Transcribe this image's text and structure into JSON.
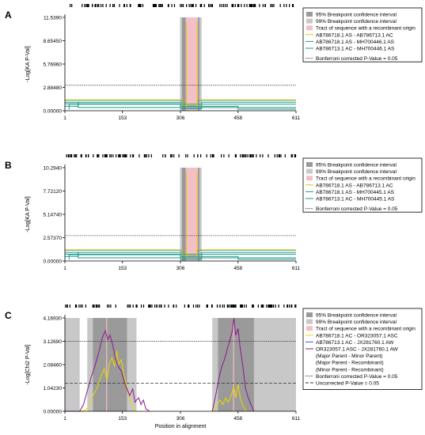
{
  "chart_data": [
    {
      "panel": "A",
      "type": "line",
      "ylabel": "-Log[KA P-Val]",
      "xlabel": "",
      "x_ticks": [
        "1",
        "153",
        "306",
        "458",
        "611"
      ],
      "y_ticks": [
        "0.00000",
        "2.88480",
        "5.76960",
        "8.65450",
        "11.5390"
      ],
      "xlim": [
        1,
        611
      ],
      "ylim": [
        0,
        11.539
      ],
      "breakpoint_99": [
        [
          305,
          362
        ]
      ],
      "breakpoint_95": [
        [
          310,
          356
        ]
      ],
      "recombinant_tract": [
        [
          320,
          352
        ]
      ],
      "threshold_lines": [
        {
          "value": 3.15,
          "style": "dotted",
          "label": "Bonferroni corrected P-Value = 0.05"
        }
      ],
      "legend": [
        "95% Breakpoint confidence interval",
        "99% Breakpoint confidence interval",
        "Tract of sequence with a recombinant origin",
        "AB786718.1 AS - AB786713.1 AC",
        "AB786718.1 AS - MH700446.1 AS",
        "AB786713.1 AC - MH700446.1 AS",
        "Bonferroni corrected P-Value = 0.05"
      ],
      "series_colors": [
        "#e8c800",
        "#1f9a8a",
        "#1f9a8a"
      ],
      "steps": [
        [
          [
            1,
            1.3
          ],
          [
            311,
            1.3
          ],
          [
            311,
            0.6
          ],
          [
            350,
            0.6
          ],
          [
            350,
            1.3
          ],
          [
            458,
            1.3
          ],
          [
            611,
            1.3
          ]
        ],
        [
          [
            1,
            1.05
          ],
          [
            36,
            1.05
          ],
          [
            36,
            0.4
          ],
          [
            306,
            0.4
          ],
          [
            306,
            0.8
          ],
          [
            458,
            0.8
          ],
          [
            611,
            0.8
          ]
        ],
        [
          [
            1,
            0.85
          ],
          [
            306,
            0.85
          ],
          [
            306,
            0.25
          ],
          [
            362,
            0.25
          ],
          [
            362,
            1.05
          ],
          [
            611,
            1.05
          ]
        ],
        [
          [
            1,
            0.55
          ],
          [
            36,
            0.55
          ],
          [
            36,
            1.05
          ],
          [
            311,
            1.05
          ],
          [
            311,
            0.4
          ],
          [
            611,
            0.4
          ]
        ],
        [
          [
            12,
            0.15
          ],
          [
            12,
            0.8
          ],
          [
            306,
            0.8
          ],
          [
            306,
            0.55
          ],
          [
            458,
            0.55
          ],
          [
            458,
            0.2
          ],
          [
            611,
            0.2
          ]
        ]
      ]
    },
    {
      "panel": "B",
      "type": "line",
      "ylabel": "-Log[KA P-Val]",
      "xlabel": "",
      "x_ticks": [
        "1",
        "153",
        "306",
        "458",
        "611"
      ],
      "y_ticks": [
        "0.00000",
        "2.57370",
        "5.14740",
        "7.72120",
        "10.2940"
      ],
      "xlim": [
        1,
        611
      ],
      "ylim": [
        0,
        10.294
      ],
      "breakpoint_99": [
        [
          305,
          362
        ]
      ],
      "breakpoint_95": [
        [
          310,
          356
        ]
      ],
      "recombinant_tract": [
        [
          320,
          352
        ]
      ],
      "threshold_lines": [
        {
          "value": 2.8,
          "style": "dotted",
          "label": "Bonferroni corrected P-Value = 0.05"
        }
      ],
      "legend": [
        "95% Breakpoint confidence interval",
        "99% Breakpoint confidence interval",
        "Tract of sequence with a recombinant origin",
        "AB786718.1 AS - AB786713.1 AC",
        "AB786718.1 AS - MH700445.1 AS",
        "AB786713.1 AC - MH700445.1 AS",
        "Bonferroni corrected P-Value = 0.05"
      ],
      "series_colors": [
        "#e8c800",
        "#1f9a8a",
        "#1f9a8a"
      ],
      "steps": [
        [
          [
            1,
            1.2
          ],
          [
            311,
            1.2
          ],
          [
            311,
            0.55
          ],
          [
            350,
            0.55
          ],
          [
            350,
            1.2
          ],
          [
            611,
            1.2
          ]
        ],
        [
          [
            1,
            0.95
          ],
          [
            36,
            0.95
          ],
          [
            36,
            0.35
          ],
          [
            306,
            0.35
          ],
          [
            306,
            0.75
          ],
          [
            611,
            0.75
          ]
        ],
        [
          [
            1,
            0.75
          ],
          [
            306,
            0.75
          ],
          [
            306,
            0.2
          ],
          [
            362,
            0.2
          ],
          [
            362,
            0.95
          ],
          [
            611,
            0.95
          ]
        ],
        [
          [
            1,
            0.5
          ],
          [
            36,
            0.5
          ],
          [
            36,
            0.95
          ],
          [
            311,
            0.95
          ],
          [
            311,
            0.35
          ],
          [
            611,
            0.35
          ]
        ],
        [
          [
            12,
            0.15
          ],
          [
            12,
            0.7
          ],
          [
            306,
            0.7
          ],
          [
            306,
            0.5
          ],
          [
            458,
            0.5
          ],
          [
            458,
            0.18
          ],
          [
            611,
            0.18
          ]
        ]
      ]
    },
    {
      "panel": "C",
      "type": "line",
      "ylabel": "-Log[Chi2 P-Val]",
      "xlabel": "Position in alignment",
      "x_ticks": [
        "1",
        "153",
        "306",
        "458",
        "611"
      ],
      "y_ticks": [
        "0.00000",
        "1.04230",
        "2.08460",
        "3.12690",
        "4.16930"
      ],
      "xlim": [
        1,
        611
      ],
      "ylim": [
        0,
        4.1693
      ],
      "breakpoint_99": [
        [
          1,
          40
        ],
        [
          60,
          190
        ],
        [
          390,
          611
        ]
      ],
      "breakpoint_95": [
        [
          75,
          165
        ],
        [
          405,
          500
        ]
      ],
      "recombinant_tract": [
        [
          110,
          112
        ],
        [
          445,
          447
        ]
      ],
      "threshold_lines": [
        {
          "value": 3.13,
          "style": "dotted",
          "label": "Bonferroni corrected P-Value = 0.05"
        },
        {
          "value": 1.26,
          "style": "dashed",
          "label": "Uncorrected P-Value = 0.05"
        }
      ],
      "legend": [
        "95% Breakpoint confidence interval",
        "99% Breakpoint confidence interval",
        "Tract of sequence with a recombinant origin",
        "AB786718.1 AC - OR323057.1 ASC",
        "AB786713.1 AC - JX281760.1 AW",
        "OR323057.1 ASC - JX281760.1 AW",
        "(Major Parent - Minor Parent)",
        "(Major Parent - Recombinant)",
        "(Minor Parent - Recombinant)",
        "Bonferroni corrected P-Value = 0.05",
        "Uncorrected P-Value = 0.05"
      ],
      "series": [
        {
          "name": "AB786718.1 AC - OR323057.1 ASC",
          "color": "#e8d800",
          "x": [
            40,
            55,
            65,
            75,
            85,
            95,
            105,
            112,
            118,
            125,
            132,
            138,
            143,
            150,
            157,
            163,
            170,
            178,
            186,
            390,
            400,
            410,
            418,
            425,
            432,
            440,
            447,
            452,
            458,
            465,
            472,
            480
          ],
          "y": [
            0.0,
            0.05,
            0.2,
            0.7,
            1.0,
            1.5,
            1.9,
            1.4,
            2.1,
            2.4,
            2.0,
            2.7,
            2.1,
            2.3,
            1.6,
            1.2,
            0.7,
            0.3,
            0.0,
            0.0,
            0.2,
            0.5,
            0.3,
            0.6,
            0.4,
            0.7,
            1.1,
            0.6,
            1.2,
            0.5,
            0.2,
            0.0
          ]
        },
        {
          "name": "AB786713.1 AC - JX281760.1 AW",
          "color": "#3a5fcd",
          "x": [],
          "y": []
        },
        {
          "name": "OR323057.1 ASC - JX281760.1 AW",
          "color": "#8a1a8a",
          "x": [
            1,
            40,
            50,
            60,
            70,
            80,
            90,
            100,
            108,
            114,
            120,
            128,
            135,
            142,
            150,
            158,
            165,
            172,
            180,
            186,
            190,
            196,
            202,
            208,
            215,
            225,
            390,
            400,
            408,
            415,
            422,
            430,
            437,
            443,
            447,
            452,
            458,
            463,
            470,
            478,
            485,
            492,
            500,
            611
          ],
          "y": [
            0.0,
            0.0,
            0.3,
            0.9,
            1.5,
            2.0,
            2.6,
            3.3,
            3.6,
            3.2,
            3.4,
            2.9,
            2.3,
            2.0,
            1.8,
            1.3,
            1.0,
            0.7,
            1.0,
            0.4,
            0.5,
            0.6,
            0.3,
            0.5,
            0.1,
            0.0,
            0.0,
            0.8,
            1.5,
            2.0,
            2.3,
            2.8,
            3.2,
            3.6,
            4.17,
            3.4,
            3.7,
            2.9,
            2.1,
            1.0,
            0.6,
            0.3,
            0.0,
            0.0
          ]
        }
      ]
    }
  ]
}
